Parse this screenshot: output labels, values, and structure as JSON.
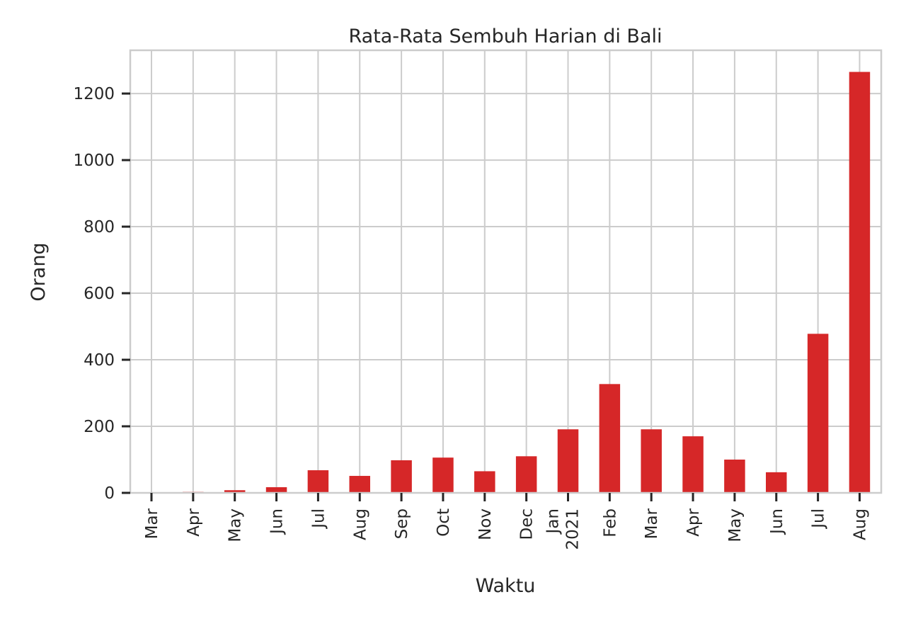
{
  "chart_data": {
    "type": "bar",
    "title": "Rata-Rata Sembuh Harian di Bali",
    "xlabel": "Waktu",
    "ylabel": "Orang",
    "categories": [
      {
        "label": "Mar",
        "sublabel": ""
      },
      {
        "label": "Apr",
        "sublabel": ""
      },
      {
        "label": "May",
        "sublabel": ""
      },
      {
        "label": "Jun",
        "sublabel": ""
      },
      {
        "label": "Jul",
        "sublabel": ""
      },
      {
        "label": "Aug",
        "sublabel": ""
      },
      {
        "label": "Sep",
        "sublabel": ""
      },
      {
        "label": "Oct",
        "sublabel": ""
      },
      {
        "label": "Nov",
        "sublabel": ""
      },
      {
        "label": "Dec",
        "sublabel": ""
      },
      {
        "label": "Jan",
        "sublabel": "2021"
      },
      {
        "label": "Feb",
        "sublabel": ""
      },
      {
        "label": "Mar",
        "sublabel": ""
      },
      {
        "label": "Apr",
        "sublabel": ""
      },
      {
        "label": "May",
        "sublabel": ""
      },
      {
        "label": "Jun",
        "sublabel": ""
      },
      {
        "label": "Jul",
        "sublabel": ""
      },
      {
        "label": "Aug",
        "sublabel": ""
      }
    ],
    "values": [
      0,
      3,
      8,
      17,
      68,
      51,
      98,
      106,
      65,
      110,
      191,
      327,
      191,
      170,
      100,
      62,
      478,
      1265
    ],
    "yticks": [
      0,
      200,
      400,
      600,
      800,
      1000,
      1200
    ],
    "ylim": [
      0,
      1330
    ],
    "bar_color": "#d62728",
    "grid": true,
    "legend": "none"
  }
}
